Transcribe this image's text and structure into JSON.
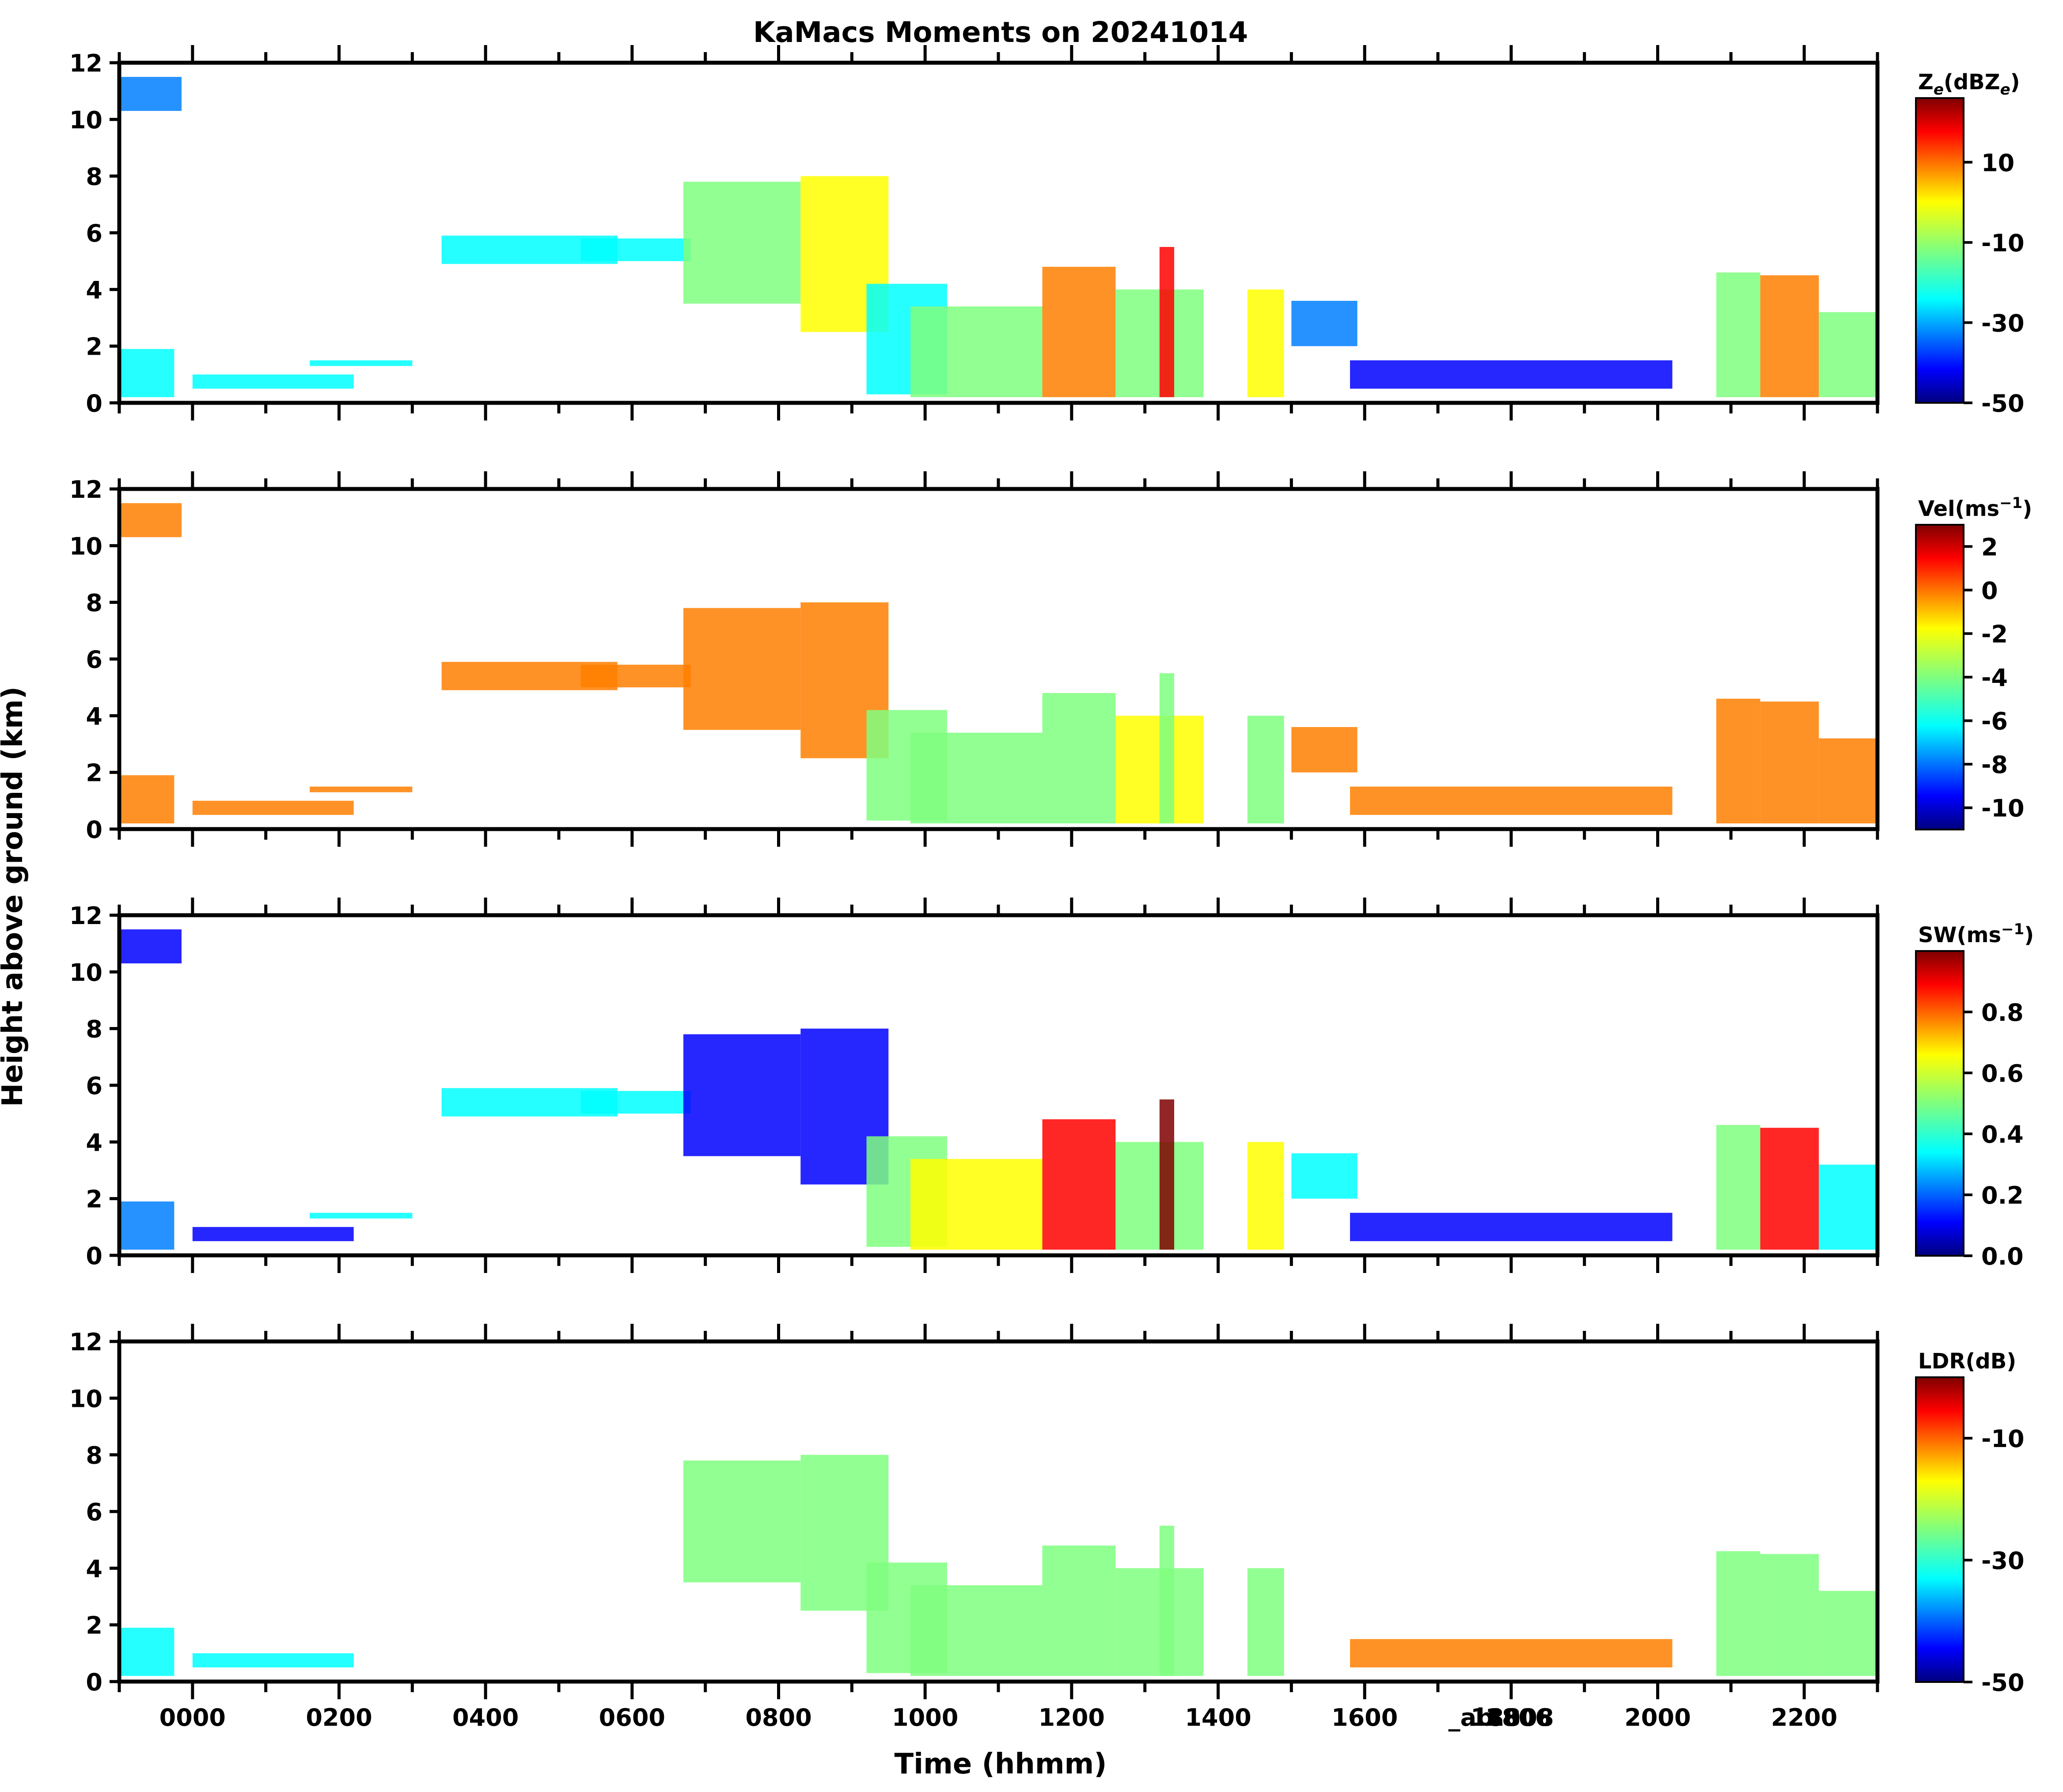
{
  "title": "KaMacs Moments on 20241014",
  "shared_ylabel": "Height above ground (km)",
  "shared_xlabel": "Time (hhmm)",
  "chart_data": [
    {
      "type": "heatmap",
      "panel": "reflectivity",
      "colorbar_label_main": "Z",
      "colorbar_label_sub": "e",
      "colorbar_label_rest": "(dBZ",
      "colorbar_label_end": ")",
      "colorbar_range": [
        -50,
        26
      ],
      "colorbar_ticks": [
        10,
        -10,
        -30,
        -50
      ],
      "ylim": [
        0,
        12
      ],
      "yticks": [
        0,
        2,
        4,
        6,
        8,
        10,
        12
      ],
      "xlim_hours": [
        -1,
        23
      ]
    },
    {
      "type": "heatmap",
      "panel": "velocity",
      "colorbar_label": "Vel(ms",
      "colorbar_label_sup": "−1",
      "colorbar_label_end": ")",
      "colorbar_range": [
        -11,
        3
      ],
      "colorbar_ticks": [
        2,
        0,
        -2,
        -4,
        -6,
        -8,
        -10
      ],
      "ylim": [
        0,
        12
      ],
      "yticks": [
        0,
        2,
        4,
        6,
        8,
        10,
        12
      ],
      "xlim_hours": [
        -1,
        23
      ]
    },
    {
      "type": "heatmap",
      "panel": "spectral_width",
      "colorbar_label": "SW(ms",
      "colorbar_label_sup": "−1",
      "colorbar_label_end": ")",
      "colorbar_range": [
        0.0,
        1.0
      ],
      "colorbar_ticks": [
        "0.8",
        "0.6",
        "0.4",
        "0.2",
        "0.0"
      ],
      "ylim": [
        0,
        12
      ],
      "yticks": [
        0,
        2,
        4,
        6,
        8,
        10,
        12
      ],
      "xlim_hours": [
        -1,
        23
      ]
    },
    {
      "type": "heatmap",
      "panel": "ldr",
      "colorbar_label": "LDR(dB)",
      "colorbar_range": [
        -50,
        0
      ],
      "colorbar_ticks": [
        -10,
        -30,
        -50
      ],
      "ylim": [
        0,
        12
      ],
      "yticks": [
        0,
        2,
        4,
        6,
        8,
        10,
        12
      ],
      "xlim_hours": [
        -1,
        23
      ],
      "xtick_labels": [
        "0000",
        "0200",
        "0400",
        "0600",
        "0800",
        "1000",
        "1200",
        "1400",
        "1600",
        "1808",
        "2000",
        "2200"
      ],
      "xtick_hours": [
        0,
        2,
        4,
        6,
        8,
        10,
        12,
        14,
        16,
        18.13,
        20,
        22
      ],
      "overlap_labels": [
        "_ab",
        "1800",
        "1806"
      ],
      "overlap_hours": [
        17.45,
        17.9,
        18.1
      ]
    }
  ],
  "colormap_jet": [
    "#00007f",
    "#0000ff",
    "#007fff",
    "#00ffff",
    "#7fff7f",
    "#ffff00",
    "#ff7f00",
    "#ff0000",
    "#7f0000"
  ]
}
